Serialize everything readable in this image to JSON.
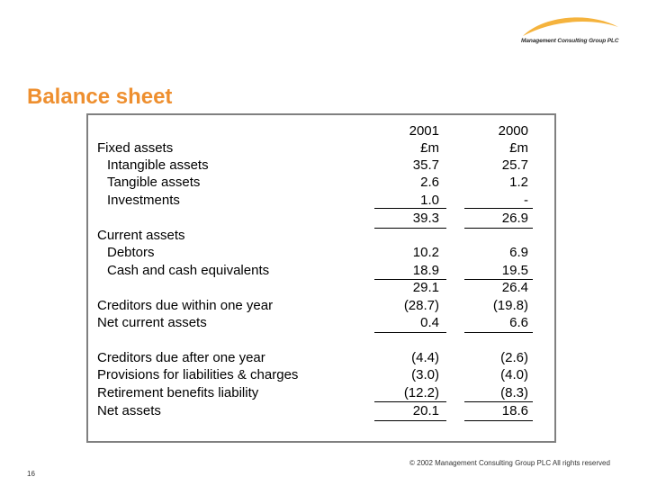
{
  "logo": {
    "text": "Management Consulting Group PLC",
    "accent_color": "#f5b33d"
  },
  "title": "Balance sheet",
  "table": {
    "header_year": {
      "c1": "2001",
      "c2": "2000"
    },
    "header_unit": {
      "c1": "£m",
      "c2": "£m"
    },
    "rows": [
      {
        "label": "Fixed assets",
        "c1": "",
        "c2": ""
      },
      {
        "label": "Intangible assets",
        "c1": "35.7",
        "c2": "25.7"
      },
      {
        "label": "Tangible assets",
        "c1": "2.6",
        "c2": "1.2"
      },
      {
        "label": "Investments",
        "c1": "1.0",
        "c2": "-"
      },
      {
        "label": "",
        "c1": "39.3",
        "c2": "26.9"
      },
      {
        "label": "Current assets",
        "c1": "",
        "c2": ""
      },
      {
        "label": "Debtors",
        "c1": "10.2",
        "c2": "6.9"
      },
      {
        "label": "Cash and cash equivalents",
        "c1": "18.9",
        "c2": "19.5"
      },
      {
        "label": "",
        "c1": "29.1",
        "c2": "26.4"
      },
      {
        "label": "Creditors due within one year",
        "c1": "(28.7)",
        "c2": "(19.8)"
      },
      {
        "label": "Net current assets",
        "c1": "0.4",
        "c2": "6.6"
      },
      {
        "label": "Creditors due after one year",
        "c1": "(4.4)",
        "c2": "(2.6)"
      },
      {
        "label": "Provisions for liabilities & charges",
        "c1": "(3.0)",
        "c2": "(4.0)"
      },
      {
        "label": "Retirement benefits liability",
        "c1": "(12.2)",
        "c2": "(8.3)"
      },
      {
        "label": "Net assets",
        "c1": "20.1",
        "c2": "18.6"
      }
    ]
  },
  "footer": {
    "copyright": "© 2002 Management Consulting Group PLC   All rights reserved",
    "page_number": "16"
  }
}
